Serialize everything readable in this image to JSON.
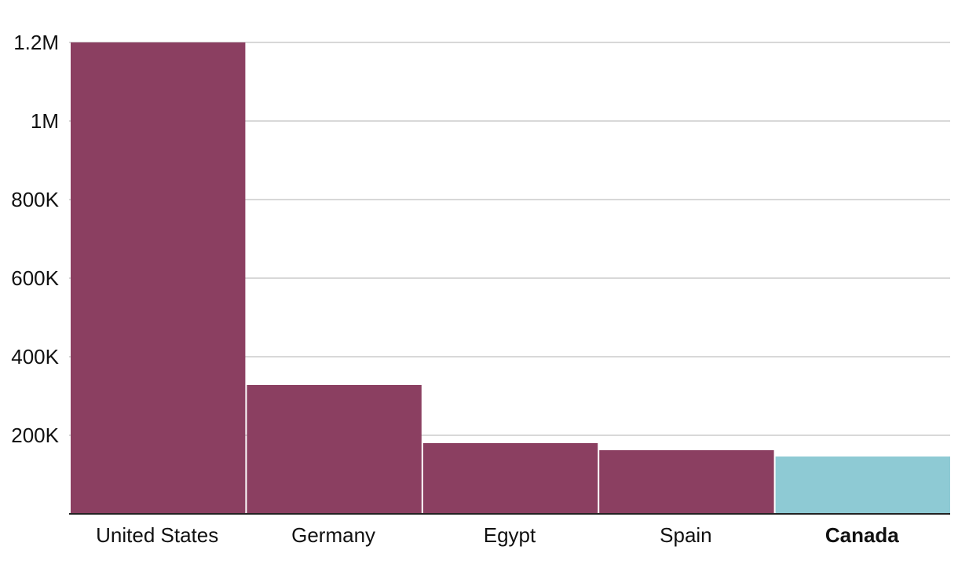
{
  "chart_data": {
    "type": "bar",
    "categories": [
      "United States",
      "Germany",
      "Egypt",
      "Spain",
      "Canada"
    ],
    "values": [
      1200000,
      328000,
      180000,
      162000,
      146000
    ],
    "colors": [
      "#8b3f61",
      "#8b3f61",
      "#8b3f61",
      "#8b3f61",
      "#8ecad4"
    ],
    "ylim": [
      0,
      1200000
    ],
    "yticks": [
      {
        "value": 200000,
        "label": "200K"
      },
      {
        "value": 400000,
        "label": "400K"
      },
      {
        "value": 600000,
        "label": "600K"
      },
      {
        "value": 800000,
        "label": "800K"
      },
      {
        "value": 1000000,
        "label": "1M"
      },
      {
        "value": 1200000,
        "label": "1.2M"
      }
    ],
    "grid": true
  }
}
